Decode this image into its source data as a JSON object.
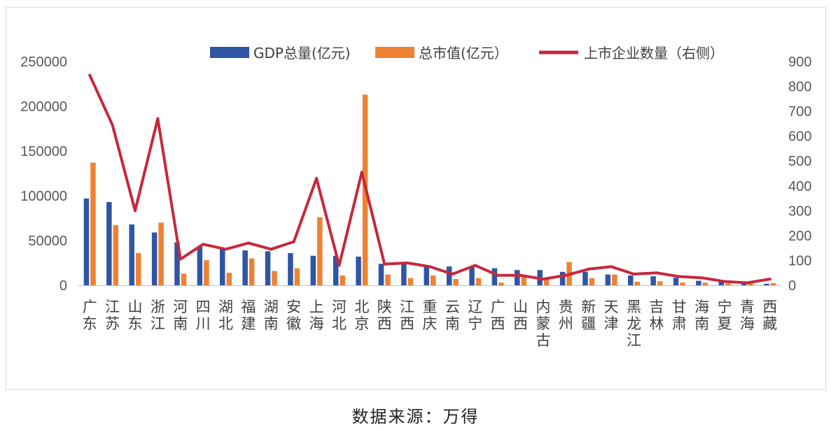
{
  "colors": {
    "gdp": "#2f55a4",
    "market_cap": "#ee8232",
    "listed": "#c8283c",
    "axis": "#bfbfbf",
    "text": "#595959"
  },
  "source_note": "数据来源：万得",
  "chart_data": {
    "type": "bar",
    "categories": [
      "广东",
      "江苏",
      "山东",
      "浙江",
      "河南",
      "四川",
      "湖北",
      "福建",
      "湖南",
      "安徽",
      "上海",
      "河北",
      "北京",
      "陕西",
      "江西",
      "重庆",
      "云南",
      "辽宁",
      "广西",
      "山西",
      "内蒙古",
      "贵州",
      "新疆",
      "天津",
      "黑龙江",
      "吉林",
      "甘肃",
      "海南",
      "宁夏",
      "青海",
      "西藏"
    ],
    "series": [
      {
        "name": "GDP总量(亿元)",
        "type": "bar",
        "axis": "left",
        "values": [
          97000,
          93000,
          68000,
          59000,
          48000,
          43000,
          41000,
          39000,
          38000,
          36000,
          33000,
          33000,
          32000,
          24000,
          24000,
          21000,
          21000,
          21000,
          19000,
          17000,
          17000,
          15000,
          15000,
          12000,
          11000,
          10000,
          8500,
          5000,
          3500,
          2700,
          1700
        ]
      },
      {
        "name": "总市值(亿元）",
        "type": "bar",
        "axis": "left",
        "values": [
          137000,
          67000,
          36000,
          70000,
          13000,
          28000,
          14000,
          30000,
          16000,
          19000,
          76000,
          11000,
          213000,
          12000,
          8000,
          11000,
          7000,
          8000,
          3000,
          11000,
          8000,
          26000,
          8000,
          12000,
          4000,
          4500,
          3000,
          3000,
          2000,
          2000,
          2500
        ]
      },
      {
        "name": "上市企业数量（右侧）",
        "type": "line",
        "axis": "right",
        "values": [
          845,
          645,
          300,
          670,
          105,
          165,
          145,
          170,
          145,
          175,
          430,
          80,
          455,
          85,
          90,
          75,
          45,
          80,
          40,
          40,
          25,
          40,
          65,
          75,
          45,
          50,
          35,
          30,
          15,
          10,
          25
        ]
      }
    ],
    "y_left": {
      "ticks": [
        "0",
        "50000",
        "100000",
        "150000",
        "200000",
        "250000"
      ],
      "lim": [
        0,
        250000
      ]
    },
    "y_right": {
      "ticks": [
        "0",
        "100",
        "200",
        "300",
        "400",
        "500",
        "600",
        "700",
        "800",
        "900"
      ],
      "lim": [
        0,
        900
      ]
    },
    "legend_position": "top",
    "grid": false
  }
}
